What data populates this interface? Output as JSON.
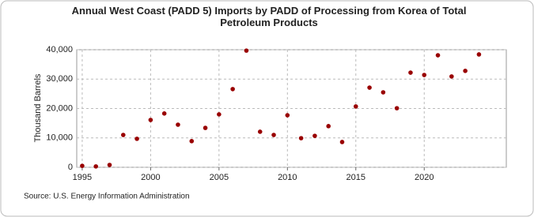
{
  "chart_data": {
    "type": "scatter",
    "title": "Annual West Coast (PADD 5) Imports by PADD of Processing from Korea of Total Petroleum Products",
    "y_label": "Thousand Barrels",
    "source": "Source: U.S. Energy Information Administration",
    "x": [
      1995,
      1996,
      1997,
      1998,
      1999,
      2000,
      2001,
      2002,
      2003,
      2004,
      2005,
      2006,
      2007,
      2008,
      2009,
      2010,
      2011,
      2012,
      2013,
      2014,
      2015,
      2016,
      2017,
      2018,
      2019,
      2020,
      2021,
      2022,
      2023,
      2024
    ],
    "series": [
      {
        "color": "#990000",
        "values": [
          500,
          300,
          800,
          11000,
          9700,
          16100,
          18300,
          14500,
          8900,
          13400,
          18000,
          26600,
          39700,
          12100,
          11000,
          17700,
          9900,
          10700,
          14000,
          8600,
          20700,
          27100,
          25500,
          20100,
          32200,
          31400,
          38100,
          30900,
          32800,
          38400
        ]
      }
    ],
    "xlim": [
      1994.6,
      2026
    ],
    "xticks": [
      1995,
      2000,
      2005,
      2010,
      2015,
      2020
    ],
    "ylim": [
      0,
      40000
    ],
    "yticks": [
      0,
      {
        "value": 10000,
        "label": "10,000"
      },
      {
        "value": 20000,
        "label": "20,000"
      },
      {
        "value": 30000,
        "label": "30,000"
      },
      {
        "value": 40000,
        "label": "40,000"
      }
    ],
    "grid": true
  }
}
